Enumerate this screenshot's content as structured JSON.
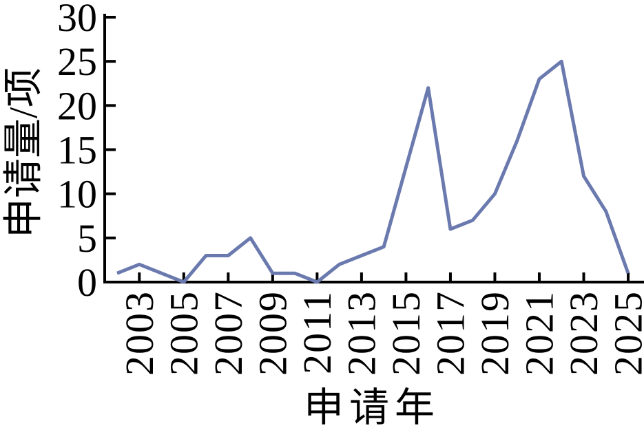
{
  "figure": {
    "background": "#ffffff"
  },
  "chart_data": {
    "type": "line",
    "title": "",
    "xlabel": "申请年",
    "ylabel": "申请量/项",
    "x": [
      2002,
      2003,
      2004,
      2005,
      2006,
      2007,
      2008,
      2009,
      2010,
      2011,
      2012,
      2013,
      2014,
      2015,
      2016,
      2017,
      2018,
      2019,
      2020,
      2021,
      2022,
      2023,
      2024,
      2025
    ],
    "series": [
      {
        "name": "申请量",
        "values": [
          1,
          2,
          1,
          0,
          3,
          3,
          5,
          1,
          1,
          0,
          2,
          3,
          4,
          13,
          22,
          6,
          7,
          10,
          16,
          23,
          25,
          12,
          8,
          1
        ]
      }
    ],
    "xticks": [
      2003,
      2005,
      2007,
      2009,
      2011,
      2013,
      2015,
      2017,
      2019,
      2021,
      2023,
      2025
    ],
    "yticks": [
      0,
      5,
      10,
      15,
      20,
      25,
      30
    ],
    "xlim": [
      2001.5,
      2025.6
    ],
    "ylim": [
      0,
      30
    ],
    "grid": false,
    "legend": "none",
    "x_tick_rotation_deg": 90,
    "line_color": "#6b7aae",
    "axis_color": "#000000",
    "text_color": "#000000"
  }
}
